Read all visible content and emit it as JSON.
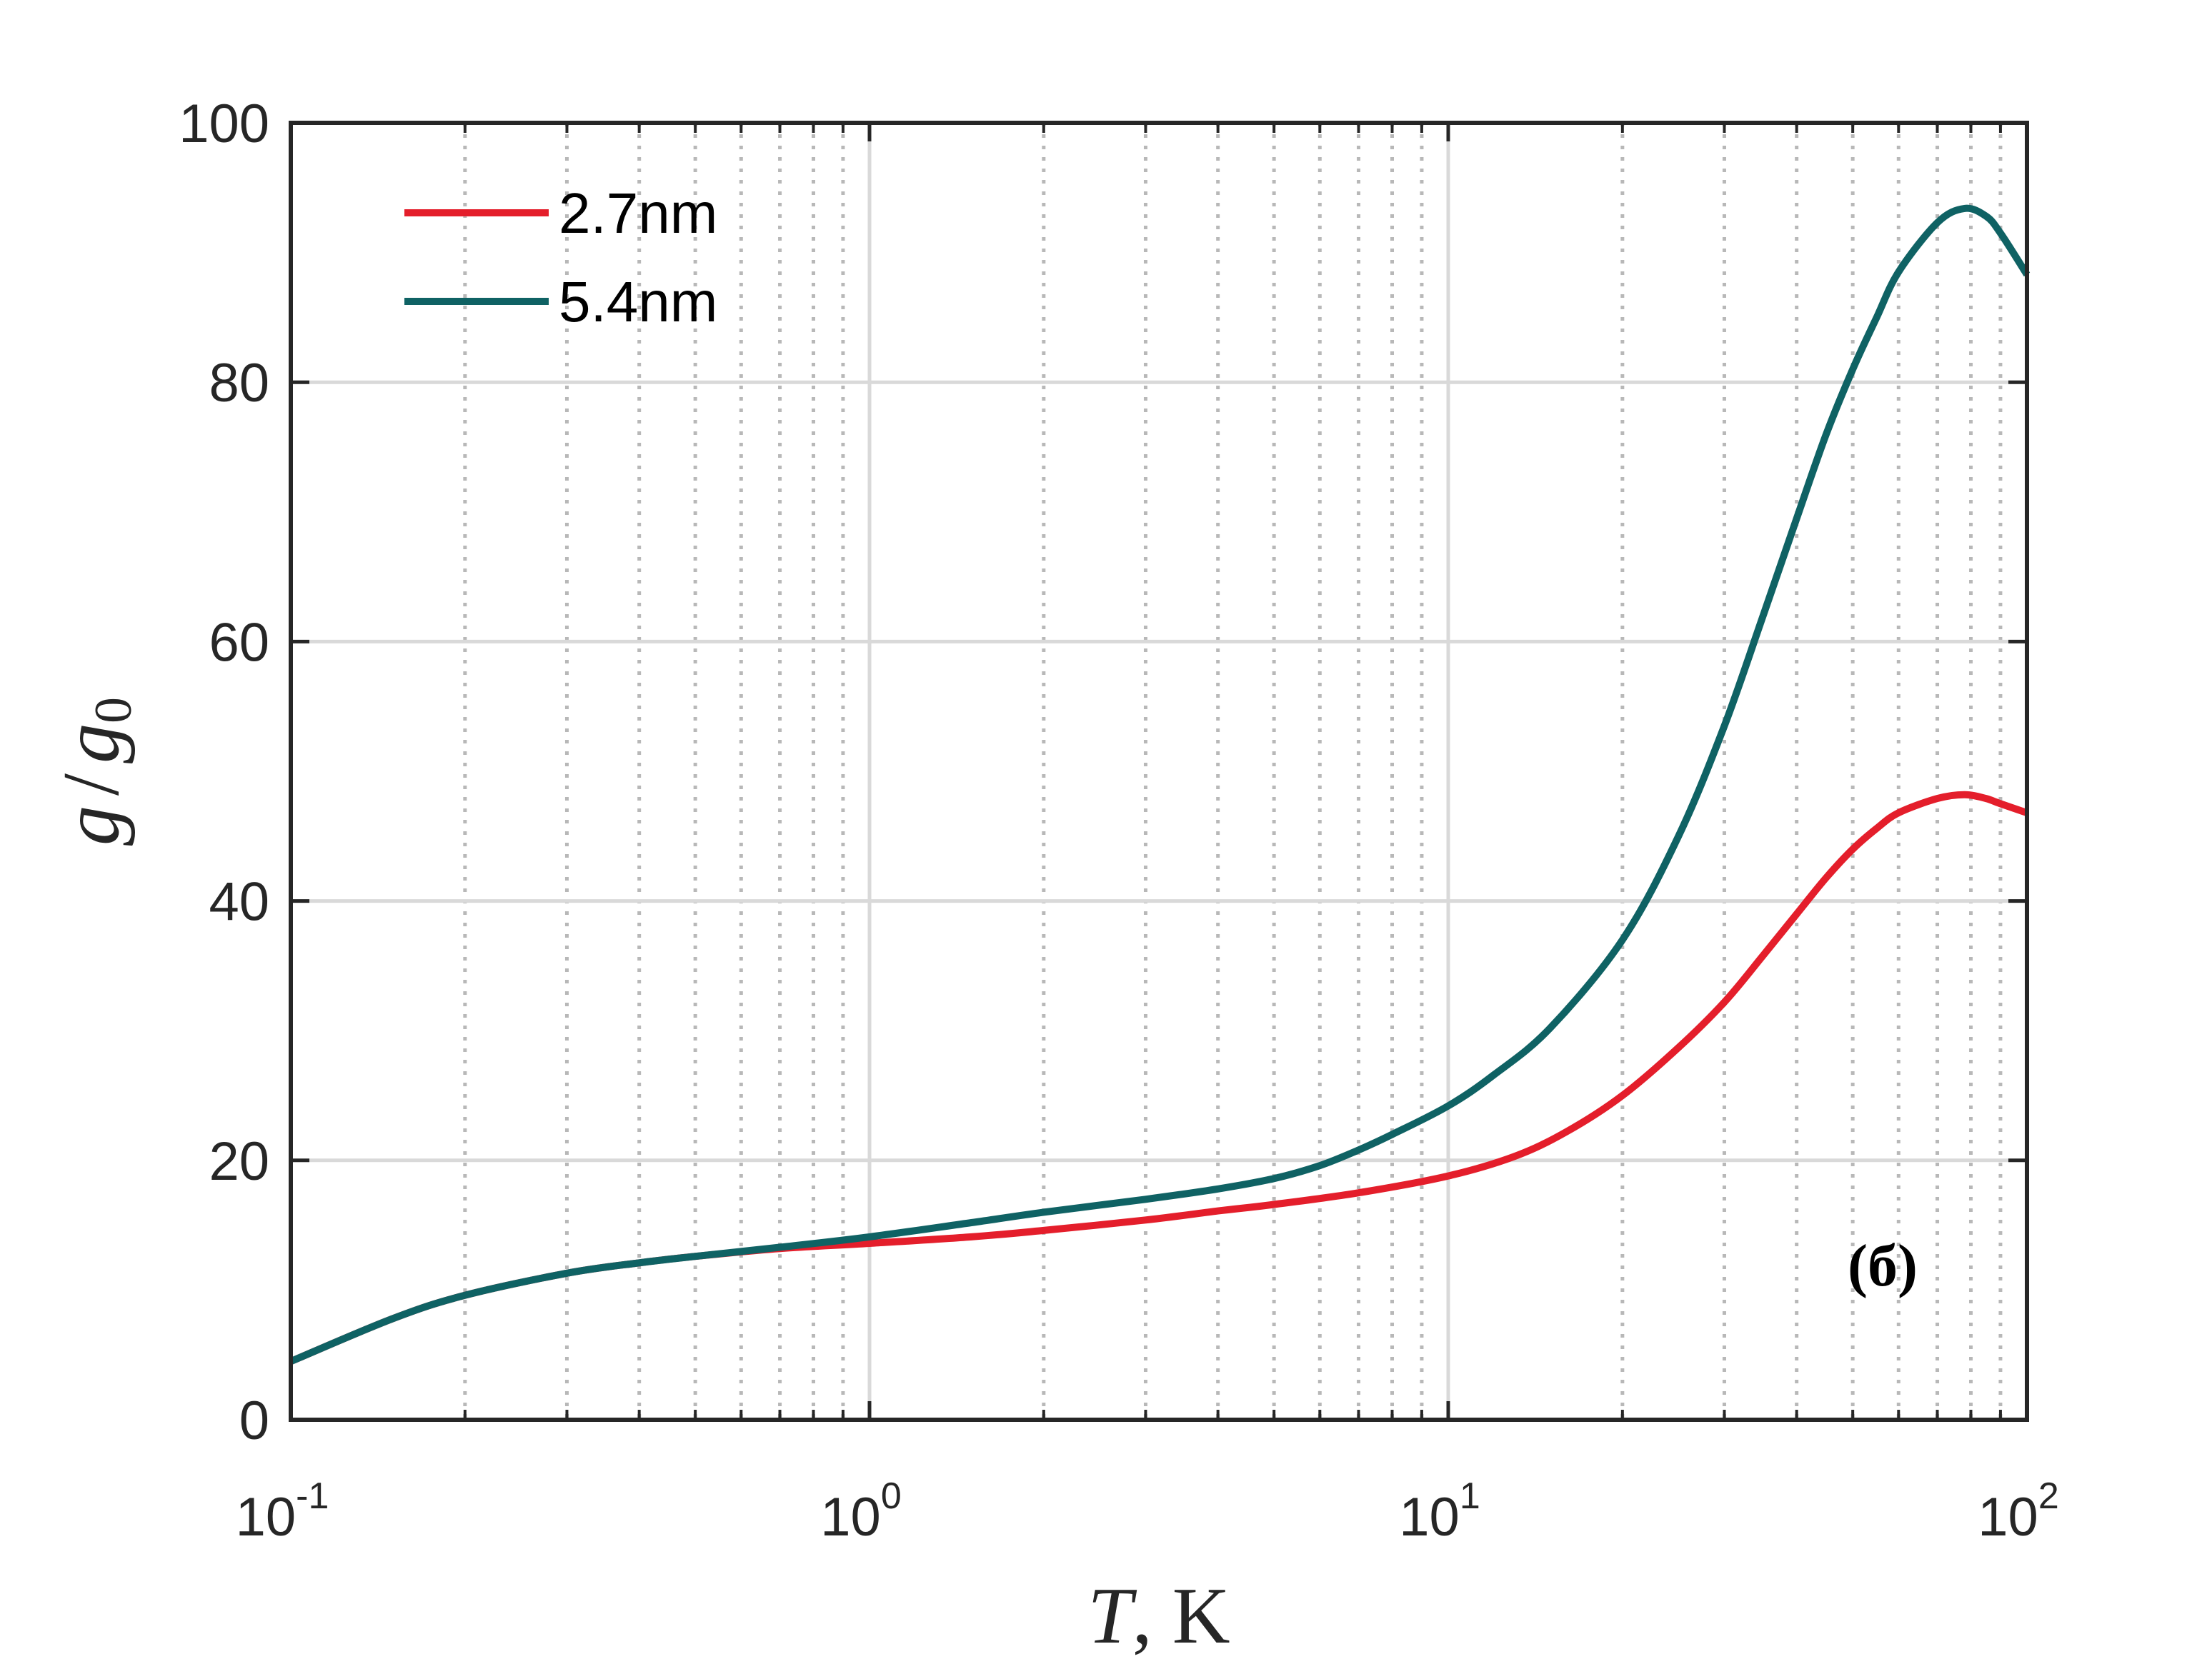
{
  "chart_data": {
    "type": "line",
    "x_scale": "log",
    "xlim": [
      0.1,
      100
    ],
    "ylim": [
      0,
      100
    ],
    "x_ticks": [
      {
        "value": 0.1,
        "base": "10",
        "exp": "-1"
      },
      {
        "value": 1,
        "base": "10",
        "exp": "0"
      },
      {
        "value": 10,
        "base": "10",
        "exp": "1"
      },
      {
        "value": 100,
        "base": "10",
        "exp": "2"
      }
    ],
    "y_ticks": [
      {
        "value": 0,
        "label": "0"
      },
      {
        "value": 20,
        "label": "20"
      },
      {
        "value": 40,
        "label": "40"
      },
      {
        "value": 60,
        "label": "60"
      },
      {
        "value": 80,
        "label": "80"
      },
      {
        "value": 100,
        "label": "100"
      }
    ],
    "grid": true,
    "minor_grid": "dotted",
    "xlabel": {
      "italic": "T",
      "rest": ", K"
    },
    "ylabel": {
      "g": "g",
      "slash": "/",
      "g0": "g",
      "sub": "0"
    },
    "legend": {
      "placement": "top-left"
    },
    "annotation": "(б)",
    "series": [
      {
        "name": "2.7nm",
        "color": "#e41e2b",
        "points": [
          [
            0.1,
            4.5
          ],
          [
            0.15,
            7.8
          ],
          [
            0.2,
            9.6
          ],
          [
            0.3,
            11.3
          ],
          [
            0.4,
            12.1
          ],
          [
            0.5,
            12.6
          ],
          [
            0.7,
            13.2
          ],
          [
            1,
            13.6
          ],
          [
            1.5,
            14.1
          ],
          [
            2,
            14.6
          ],
          [
            3,
            15.4
          ],
          [
            4,
            16.1
          ],
          [
            5,
            16.6
          ],
          [
            7,
            17.5
          ],
          [
            10,
            18.8
          ],
          [
            13,
            20.3
          ],
          [
            16,
            22.2
          ],
          [
            20,
            25
          ],
          [
            25,
            28.7
          ],
          [
            30,
            32.2
          ],
          [
            35,
            35.8
          ],
          [
            40,
            39
          ],
          [
            45,
            41.8
          ],
          [
            50,
            44
          ],
          [
            55,
            45.6
          ],
          [
            60,
            46.8
          ],
          [
            70,
            47.9
          ],
          [
            78,
            48.2
          ],
          [
            85,
            47.9
          ],
          [
            90,
            47.5
          ],
          [
            100,
            46.8
          ]
        ]
      },
      {
        "name": "5.4nm",
        "color": "#0f6264",
        "points": [
          [
            0.1,
            4.5
          ],
          [
            0.15,
            7.8
          ],
          [
            0.2,
            9.6
          ],
          [
            0.3,
            11.3
          ],
          [
            0.4,
            12.1
          ],
          [
            0.5,
            12.6
          ],
          [
            0.7,
            13.3
          ],
          [
            1,
            14.1
          ],
          [
            1.5,
            15.2
          ],
          [
            2,
            16
          ],
          [
            3,
            17
          ],
          [
            4,
            17.8
          ],
          [
            5,
            18.6
          ],
          [
            6,
            19.6
          ],
          [
            7,
            20.8
          ],
          [
            8,
            22
          ],
          [
            10,
            24.2
          ],
          [
            12,
            26.6
          ],
          [
            15,
            30.2
          ],
          [
            20,
            37
          ],
          [
            25,
            45
          ],
          [
            30,
            53.5
          ],
          [
            35,
            62
          ],
          [
            40,
            69.5
          ],
          [
            45,
            76
          ],
          [
            50,
            81
          ],
          [
            55,
            85
          ],
          [
            60,
            88.5
          ],
          [
            70,
            92.3
          ],
          [
            78,
            93.4
          ],
          [
            85,
            92.8
          ],
          [
            90,
            91.5
          ],
          [
            100,
            88.3
          ]
        ]
      }
    ]
  }
}
